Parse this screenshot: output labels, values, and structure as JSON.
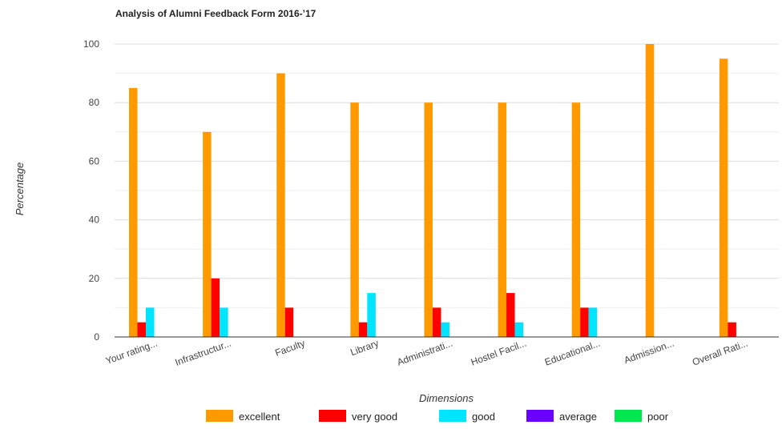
{
  "chart_data": {
    "type": "bar",
    "title": "Analysis of Alumni Feedback Form 2016-’17",
    "xlabel": "Dimensions",
    "ylabel": "Percentage",
    "categories": [
      "Your rating...",
      "Infrastructur...",
      "Faculty",
      "Library",
      "Administrati...",
      "Hostel Facil...",
      "Educational...",
      "Admission...",
      "Overall Rati..."
    ],
    "series": [
      {
        "name": "excellent",
        "color": "#ff9900",
        "values": [
          85,
          70,
          90,
          80,
          80,
          80,
          80,
          100,
          95
        ]
      },
      {
        "name": "very good",
        "color": "#ff0000",
        "values": [
          5,
          20,
          10,
          5,
          10,
          15,
          10,
          0,
          5
        ]
      },
      {
        "name": "good",
        "color": "#00e5ff",
        "values": [
          10,
          10,
          0,
          15,
          5,
          5,
          10,
          0,
          0
        ]
      },
      {
        "name": "average",
        "color": "#6a00ff",
        "values": [
          0,
          0,
          0,
          0,
          0,
          0,
          0,
          0,
          0
        ]
      },
      {
        "name": "poor",
        "color": "#00e64d",
        "values": [
          0,
          0,
          0,
          0,
          0,
          0,
          0,
          0,
          0
        ]
      }
    ],
    "ylim": [
      0,
      100
    ],
    "yticks": [
      0,
      20,
      40,
      60,
      80,
      100
    ],
    "grid": true,
    "legend_position": "bottom"
  }
}
